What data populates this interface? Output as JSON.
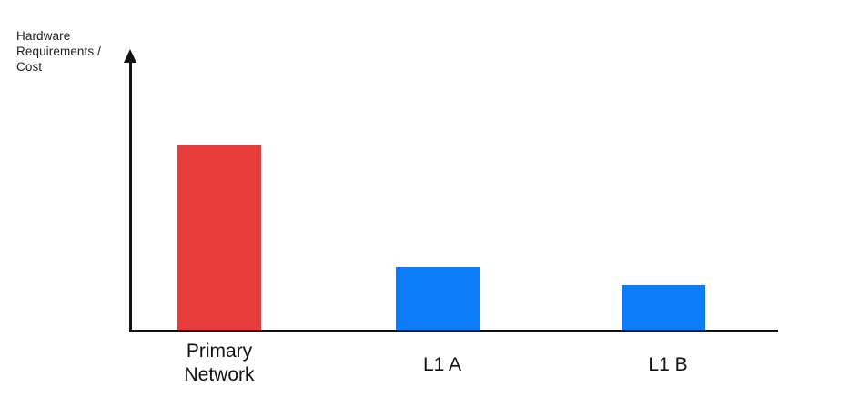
{
  "chart_data": {
    "type": "bar",
    "title": "",
    "xlabel": "",
    "ylabel": "Hardware\nRequirements /\nCost",
    "axis_style": "conceptual axes with up-arrow on y-axis, no numeric ticks, no gridlines",
    "grid": false,
    "legend": "none",
    "categories": [
      "Primary Network",
      "L1 A",
      "L1 B"
    ],
    "max_value": 100,
    "bars": [
      {
        "label": "Primary Network",
        "value": 100,
        "color": "#E63C3C"
      },
      {
        "label": "L1 A",
        "value": 34,
        "color": "#0D7CF8"
      },
      {
        "label": "L1 B",
        "value": 24,
        "color": "#0D7CF8"
      }
    ]
  },
  "colors": {
    "background": "#ffffff",
    "axis": "#121212",
    "text": "#1c1c1c",
    "bar_red": "#E63C3C",
    "bar_blue": "#0D7CF8"
  }
}
